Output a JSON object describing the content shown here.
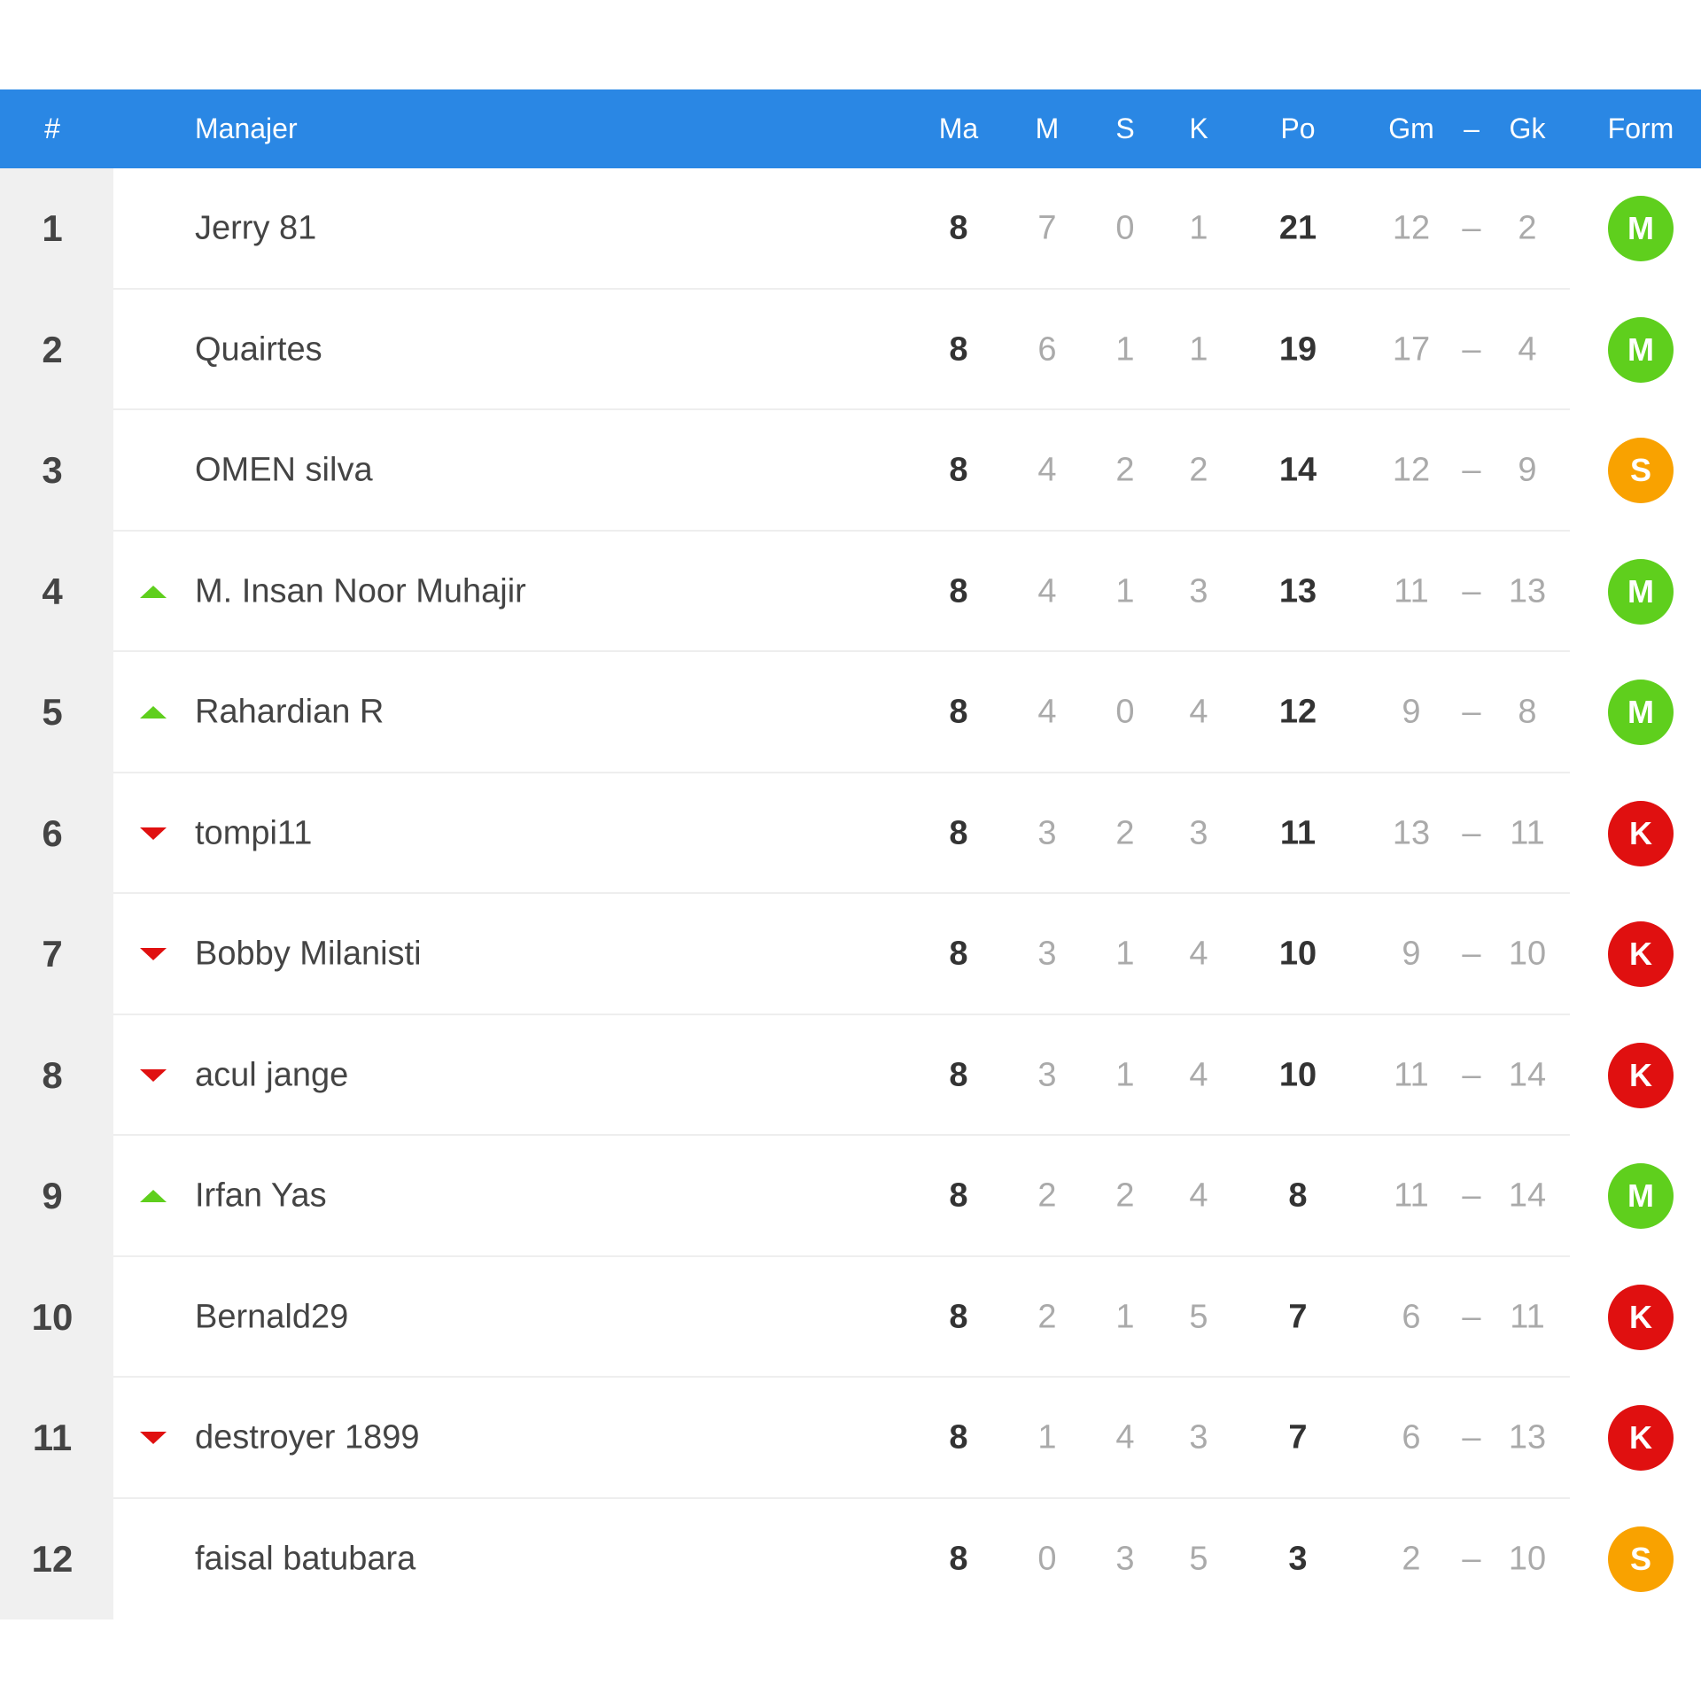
{
  "header": {
    "rank": "#",
    "manager": "Manajer",
    "played": "Ma",
    "wins": "M",
    "draws": "S",
    "losses": "K",
    "points": "Po",
    "goals_for": "Gm",
    "goals_sep": "–",
    "goals_against": "Gk",
    "form": "Form"
  },
  "colors": {
    "header_bg": "#2a87e4",
    "trend_up": "#5fcf1d",
    "trend_down": "#e01010",
    "form_M": "#5fcf1d",
    "form_S": "#f9a200",
    "form_K": "#e01010"
  },
  "rows": [
    {
      "rank": "1",
      "trend": "none",
      "name": "Jerry 81",
      "played": "8",
      "wins": "7",
      "draws": "0",
      "losses": "1",
      "points": "21",
      "gf": "12",
      "sep": "–",
      "ga": "2",
      "form": "M"
    },
    {
      "rank": "2",
      "trend": "none",
      "name": "Quairtes",
      "played": "8",
      "wins": "6",
      "draws": "1",
      "losses": "1",
      "points": "19",
      "gf": "17",
      "sep": "–",
      "ga": "4",
      "form": "M"
    },
    {
      "rank": "3",
      "trend": "none",
      "name": "OMEN silva",
      "played": "8",
      "wins": "4",
      "draws": "2",
      "losses": "2",
      "points": "14",
      "gf": "12",
      "sep": "–",
      "ga": "9",
      "form": "S"
    },
    {
      "rank": "4",
      "trend": "up",
      "name": "M. Insan Noor Muhajir",
      "played": "8",
      "wins": "4",
      "draws": "1",
      "losses": "3",
      "points": "13",
      "gf": "11",
      "sep": "–",
      "ga": "13",
      "form": "M"
    },
    {
      "rank": "5",
      "trend": "up",
      "name": "Rahardian R",
      "played": "8",
      "wins": "4",
      "draws": "0",
      "losses": "4",
      "points": "12",
      "gf": "9",
      "sep": "–",
      "ga": "8",
      "form": "M"
    },
    {
      "rank": "6",
      "trend": "down",
      "name": "tompi11",
      "played": "8",
      "wins": "3",
      "draws": "2",
      "losses": "3",
      "points": "11",
      "gf": "13",
      "sep": "–",
      "ga": "11",
      "form": "K"
    },
    {
      "rank": "7",
      "trend": "down",
      "name": "Bobby Milanisti",
      "played": "8",
      "wins": "3",
      "draws": "1",
      "losses": "4",
      "points": "10",
      "gf": "9",
      "sep": "–",
      "ga": "10",
      "form": "K"
    },
    {
      "rank": "8",
      "trend": "down",
      "name": "acul jange",
      "played": "8",
      "wins": "3",
      "draws": "1",
      "losses": "4",
      "points": "10",
      "gf": "11",
      "sep": "–",
      "ga": "14",
      "form": "K"
    },
    {
      "rank": "9",
      "trend": "up",
      "name": "Irfan Yas",
      "played": "8",
      "wins": "2",
      "draws": "2",
      "losses": "4",
      "points": "8",
      "gf": "11",
      "sep": "–",
      "ga": "14",
      "form": "M"
    },
    {
      "rank": "10",
      "trend": "none",
      "name": "Bernald29",
      "played": "8",
      "wins": "2",
      "draws": "1",
      "losses": "5",
      "points": "7",
      "gf": "6",
      "sep": "–",
      "ga": "11",
      "form": "K"
    },
    {
      "rank": "11",
      "trend": "down",
      "name": "destroyer 1899",
      "played": "8",
      "wins": "1",
      "draws": "4",
      "losses": "3",
      "points": "7",
      "gf": "6",
      "sep": "–",
      "ga": "13",
      "form": "K"
    },
    {
      "rank": "12",
      "trend": "none",
      "name": "faisal batubara",
      "played": "8",
      "wins": "0",
      "draws": "3",
      "losses": "5",
      "points": "3",
      "gf": "2",
      "sep": "–",
      "ga": "10",
      "form": "S"
    }
  ]
}
